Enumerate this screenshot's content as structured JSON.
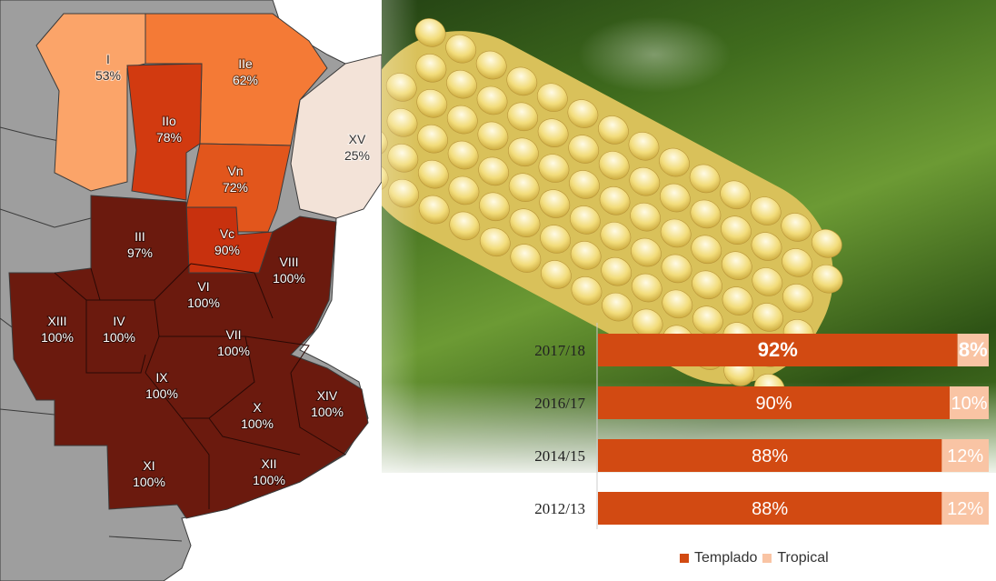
{
  "colors": {
    "templado": "#D24A12",
    "tropical": "#F9C4A4",
    "map_base": "#9e9e9e",
    "map_border": "#3a3a3a",
    "dark_region": "#6b1a0e",
    "region_I": "#FBA469",
    "region_IIe": "#F47A36",
    "region_IIo": "#D23A10",
    "region_Vn": "#E2561C",
    "region_Vc": "#C8310E",
    "region_XV": "#F3E3D8"
  },
  "map": {
    "regions": [
      {
        "id": "I",
        "name": "I",
        "pct": "53%"
      },
      {
        "id": "IIe",
        "name": "IIe",
        "pct": "62%"
      },
      {
        "id": "IIo",
        "name": "IIo",
        "pct": "78%"
      },
      {
        "id": "XV",
        "name": "XV",
        "pct": "25%"
      },
      {
        "id": "Vn",
        "name": "Vn",
        "pct": "72%"
      },
      {
        "id": "Vc",
        "name": "Vc",
        "pct": "90%"
      },
      {
        "id": "III",
        "name": "III",
        "pct": "97%"
      },
      {
        "id": "VIII",
        "name": "VIII",
        "pct": "100%"
      },
      {
        "id": "VI",
        "name": "VI",
        "pct": "100%"
      },
      {
        "id": "XIII",
        "name": "XIII",
        "pct": "100%"
      },
      {
        "id": "IV",
        "name": "IV",
        "pct": "100%"
      },
      {
        "id": "VII",
        "name": "VII",
        "pct": "100%"
      },
      {
        "id": "IX",
        "name": "IX",
        "pct": "100%"
      },
      {
        "id": "XIV",
        "name": "XIV",
        "pct": "100%"
      },
      {
        "id": "X",
        "name": "X",
        "pct": "100%"
      },
      {
        "id": "XI",
        "name": "XI",
        "pct": "100%"
      },
      {
        "id": "XII",
        "name": "XII",
        "pct": "100%"
      }
    ]
  },
  "chart_data": {
    "type": "bar",
    "orientation": "horizontal",
    "stacked": true,
    "categories": [
      "2017/18",
      "2016/17",
      "2014/15",
      "2012/13"
    ],
    "series": [
      {
        "name": "Templado",
        "values": [
          92,
          90,
          88,
          88
        ],
        "labels": [
          "92%",
          "90%",
          "88%",
          "88%"
        ]
      },
      {
        "name": "Tropical",
        "values": [
          8,
          10,
          12,
          12
        ],
        "labels": [
          "8%",
          "10%",
          "12%",
          "12%"
        ]
      }
    ],
    "xlim": [
      0,
      100
    ],
    "grid": false,
    "legend_position": "bottom"
  },
  "legend": {
    "items": [
      {
        "label": "Templado"
      },
      {
        "label": "Tropical"
      }
    ]
  }
}
